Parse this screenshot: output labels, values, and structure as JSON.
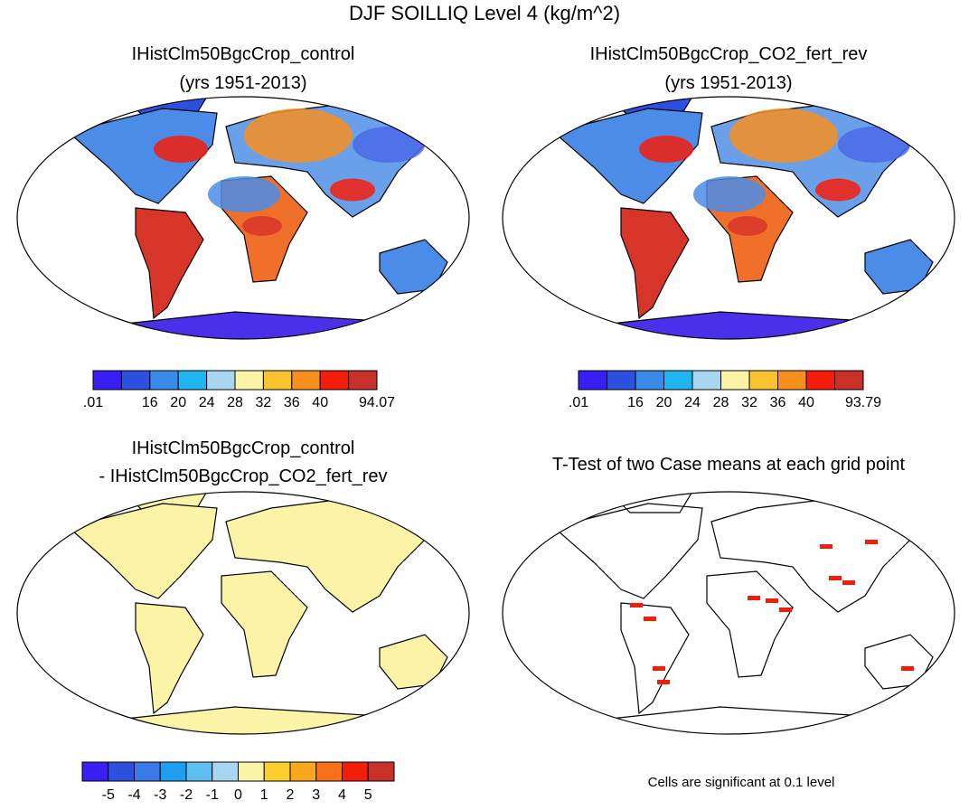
{
  "title": "DJF SOILLIQ Level 4 (kg/m^2)",
  "panels": [
    {
      "title": [
        "IHistClm50BgcCrop_control",
        "(yrs 1951-2013)"
      ],
      "colorbar": {
        "colors": [
          "#3a1ef5",
          "#2d50e0",
          "#3a8ae8",
          "#1fb5f0",
          "#a8d6f0",
          "#fbf3a6",
          "#f9c22e",
          "#f78e1e",
          "#f41d0a",
          "#c8312a"
        ],
        "labels": [
          ".01",
          null,
          "16",
          "20",
          "24",
          "28",
          "32",
          "36",
          "40",
          null,
          "94.07"
        ]
      }
    },
    {
      "title": [
        "IHistClm50BgcCrop_CO2_fert_rev",
        "(yrs 1951-2013)"
      ],
      "colorbar": {
        "colors": [
          "#3a1ef5",
          "#2d50e0",
          "#3a8ae8",
          "#1fb5f0",
          "#a8d6f0",
          "#fbf3a6",
          "#f9c22e",
          "#f78e1e",
          "#f41d0a",
          "#c8312a"
        ],
        "labels": [
          ".01",
          null,
          "16",
          "20",
          "24",
          "28",
          "32",
          "36",
          "40",
          null,
          "93.79"
        ]
      }
    },
    {
      "title": [
        "IHistClm50BgcCrop_control",
        "- IHistClm50BgcCrop_CO2_fert_rev"
      ],
      "colorbar": {
        "colors": [
          "#3a1ef5",
          "#2d50e0",
          "#3a7ae8",
          "#1e9ef0",
          "#5ec0f0",
          "#a8d6f0",
          "#fbf3a6",
          "#fbcf2e",
          "#f9a81e",
          "#f7701a",
          "#f41d0a",
          "#c8312a"
        ],
        "labels": [
          null,
          "-5",
          "-4",
          "-3",
          "-2",
          "-1",
          "0",
          "1",
          "2",
          "3",
          "4",
          "5",
          null
        ]
      }
    },
    {
      "title": [
        "T-Test of two Case means at each grid point"
      ],
      "note": "Cells are significant at 0.1 level"
    }
  ]
}
